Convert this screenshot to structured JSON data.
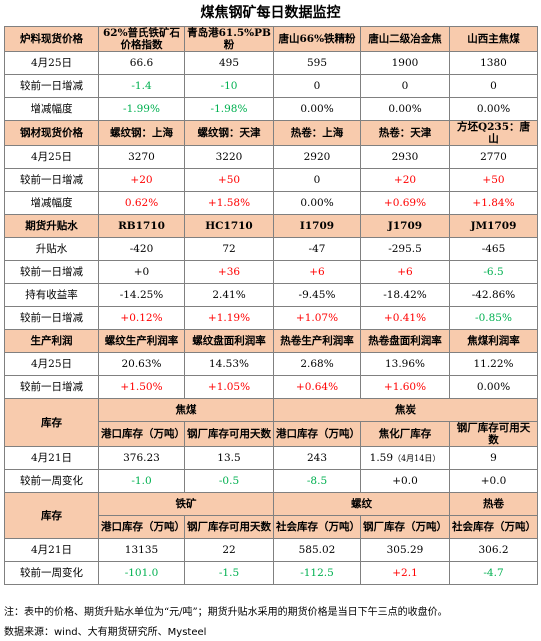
{
  "title": "煤焦钢矿每日数据监控",
  "s1": {
    "head": [
      "炉料现货价格",
      "62%普氏铁矿石价格指数",
      "青岛港61.5%PB粉",
      "唐山66%铁精粉",
      "唐山二级冶金焦",
      "山西主焦煤"
    ],
    "rows": [
      [
        "4月25日",
        "66.6",
        "495",
        "595",
        "1900",
        "1380"
      ],
      [
        "较前一日增减",
        "-1.4",
        "-10",
        "0",
        "0",
        "0"
      ],
      [
        "增减幅度",
        "-1.99%",
        "-1.98%",
        "0.00%",
        "0.00%",
        "0.00%"
      ]
    ]
  },
  "s2": {
    "head": [
      "钢材现货价格",
      "螺纹钢：上海",
      "螺纹钢：天津",
      "热卷：上海",
      "热卷：天津",
      "方坯Q235：唐山"
    ],
    "rows": [
      [
        "4月25日",
        "3270",
        "3220",
        "2920",
        "2930",
        "2770"
      ],
      [
        "较前一日增减",
        "+20",
        "+50",
        "0",
        "+20",
        "+50"
      ],
      [
        "增减幅度",
        "0.62%",
        "+1.58%",
        "0.00%",
        "+0.69%",
        "+1.84%"
      ]
    ]
  },
  "s3": {
    "head": [
      "期货升贴水",
      "RB1710",
      "HC1710",
      "I1709",
      "J1709",
      "JM1709"
    ],
    "rows": [
      [
        "升贴水",
        "-420",
        "72",
        "-47",
        "-295.5",
        "-465"
      ],
      [
        "较前一日增减",
        "+0",
        "+36",
        "+6",
        "+6",
        "-6.5"
      ],
      [
        "持有收益率",
        "-14.25%",
        "2.41%",
        "-9.45%",
        "-18.42%",
        "-42.86%"
      ],
      [
        "较前一日增减",
        "+0.12%",
        "+1.19%",
        "+1.07%",
        "+0.41%",
        "-0.85%"
      ]
    ]
  },
  "s4": {
    "head": [
      "生产利润",
      "螺纹生产利润率",
      "螺纹盘面利润率",
      "热卷生产利润率",
      "热卷盘面利润率",
      "焦煤利润率"
    ],
    "rows": [
      [
        "4月25日",
        "20.63%",
        "14.53%",
        "2.68%",
        "13.96%",
        "11.22%"
      ],
      [
        "较前一日增减",
        "+1.50%",
        "+1.05%",
        "+0.64%",
        "+1.60%",
        "0.00%"
      ]
    ]
  },
  "s5": {
    "label": "库存",
    "group1": "焦煤",
    "group2": "焦炭",
    "sub": [
      "港口库存（万吨）",
      "钢厂库存可用天数",
      "港口库存（万吨）",
      "焦化厂库存",
      "钢厂库存可用天数"
    ],
    "rows": [
      [
        "4月21日",
        "376.23",
        "13.5",
        "243",
        "1.59",
        "（4月14日）",
        "9"
      ],
      [
        "较前一周变化",
        "-1.0",
        "-0.5",
        "-8.5",
        "+0.0",
        "+0.0"
      ]
    ]
  },
  "s6": {
    "label": "库存",
    "group1": "铁矿",
    "group2": "螺纹",
    "group3": "热卷",
    "sub": [
      "港口库存（万吨）",
      "钢厂库存可用天数",
      "社会库存（万吨）",
      "钢厂库存（万吨）",
      "社会库存（万吨）"
    ],
    "rows": [
      [
        "4月21日",
        "13135",
        "22",
        "585.02",
        "305.29",
        "306.2"
      ],
      [
        "较前一周变化",
        "-101.0",
        "-1.5",
        "-112.5",
        "+2.1",
        "-4.7"
      ]
    ]
  },
  "notes": [
    "注：表中的价格、期货升贴水单位为“元/吨”；期货升贴水采用的期货价格是当日下午三点的收盘价。",
    "数据来源：wind、大有期货研究所、Mysteel"
  ],
  "colors": {
    "header_bg": "#f8cbad",
    "increase": "#ff0000",
    "decrease": "#00b050",
    "border": "#808080"
  }
}
